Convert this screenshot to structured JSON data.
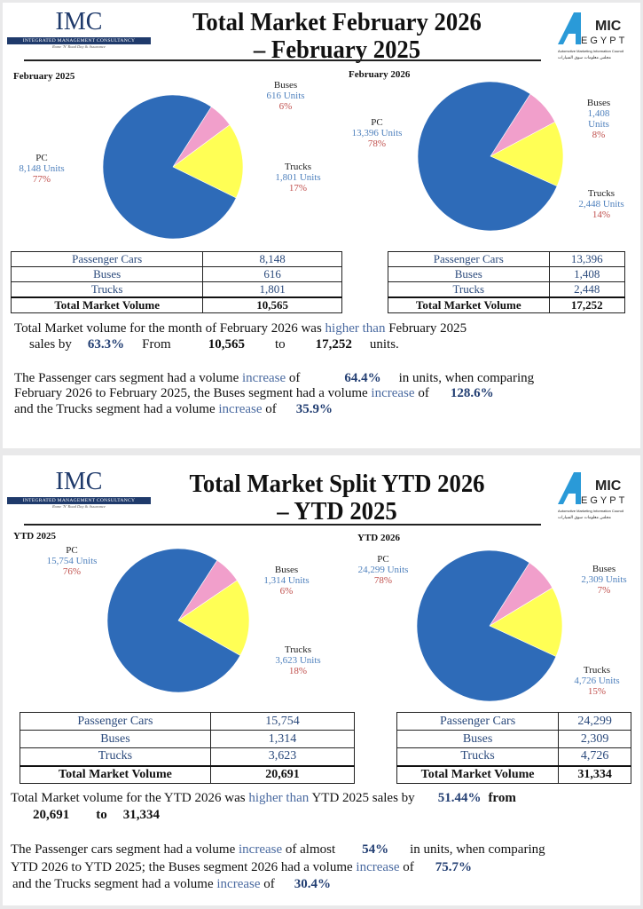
{
  "logos": {
    "imc": {
      "text": "IMC",
      "subtitle": "INTEGRATED MANAGEMENT CONSULTANCY",
      "tagline": "Rome 'N' Road Day & Assurance"
    },
    "amic": {
      "text_a": "A",
      "text_mic": "MIC",
      "text_egypt": "EGYPT",
      "caption": "Automotive Marketing Information Council",
      "caption_ar": "مجلس معلومات سوق السيارات"
    }
  },
  "colors": {
    "pc": "#2e6bb8",
    "buses": "#f19fcb",
    "trucks": "#ffff55",
    "units": "#4f81bd",
    "pct": "#c0504d",
    "accent": "#1f3a6b"
  },
  "panels": [
    {
      "title_line1": "Total Market February 2026",
      "title_line2": "– February 2025",
      "left_label": "February 2025",
      "right_label": "February 2026",
      "left_table": {
        "rows": [
          [
            "Passenger Cars",
            "8,148"
          ],
          [
            "Buses",
            "616"
          ],
          [
            "Trucks",
            "1,801"
          ]
        ],
        "total": [
          "Total Market Volume",
          "10,565"
        ]
      },
      "right_table": {
        "rows": [
          [
            "Passenger Cars",
            "13,396"
          ],
          [
            "Buses",
            "1,408"
          ],
          [
            "Trucks",
            "2,448"
          ]
        ],
        "total": [
          "Total Market Volume",
          "17,252"
        ]
      },
      "p1": {
        "a": "Total Market volume for the month of February 2026 was ",
        "hl": "higher than",
        "b": " February 2025",
        "c": "sales by",
        "pct": "63.3%",
        "from": "From",
        "v1": "10,565",
        "to": "to",
        "v2": "17,252",
        "units": "units."
      },
      "p2": {
        "l1a": "The Passenger cars segment had a volume ",
        "inc": "increase",
        "l1b": " of",
        "v1": "64.4%",
        "l1c": "in units, when comparing",
        "l2a": "February 2026 to February 2025, the Buses segment had a volume ",
        "l2b": " of",
        "v2": "128.6%",
        "l3a": "and the Trucks segment had a volume ",
        "l3b": " of",
        "v3": "35.9%"
      }
    },
    {
      "title_line1": "Total Market Split YTD 2026",
      "title_line2": "– YTD 2025",
      "left_label": "YTD 2025",
      "right_label": "YTD 2026",
      "left_table": {
        "rows": [
          [
            "Passenger Cars",
            "15,754"
          ],
          [
            "Buses",
            "1,314"
          ],
          [
            "Trucks",
            "3,623"
          ]
        ],
        "total": [
          "Total Market Volume",
          "20,691"
        ]
      },
      "right_table": {
        "rows": [
          [
            "Passenger Cars",
            "24,299"
          ],
          [
            "Buses",
            "2,309"
          ],
          [
            "Trucks",
            "4,726"
          ]
        ],
        "total": [
          "Total Market Volume",
          "31,334"
        ]
      },
      "p1": {
        "a": "Total Market volume for the YTD 2026 was ",
        "hl": "higher than",
        "b": " YTD 2025 sales by",
        "pct": "51.44%",
        "from": "from",
        "v1": "20,691",
        "to": "to",
        "v2": "31,334"
      },
      "p2": {
        "l1a": "The Passenger cars segment had a volume ",
        "inc": "increase",
        "l1b": " of almost",
        "v1": "54%",
        "l1c": "in units, when comparing",
        "l2a": "YTD 2026 to YTD 2025; the Buses segment 2026  had a volume ",
        "l2b": " of",
        "v2": "75.7%",
        "l3a": "and the Trucks segment had a volume ",
        "l3b": " of",
        "v3": "30.4%"
      }
    }
  ],
  "chart_data": [
    {
      "type": "pie",
      "title": "February 2025",
      "slices": [
        {
          "label": "PC",
          "value": 8148,
          "units": "8,148 Units",
          "pct": "77%"
        },
        {
          "label": "Buses",
          "value": 616,
          "units": "616  Units",
          "pct": "6%"
        },
        {
          "label": "Trucks",
          "value": 1801,
          "units": "1,801 Units",
          "pct": "17%"
        }
      ]
    },
    {
      "type": "pie",
      "title": "February 2026",
      "slices": [
        {
          "label": "PC",
          "value": 13396,
          "units": "13,396 Units",
          "pct": "78%"
        },
        {
          "label": "Buses",
          "value": 1408,
          "units": "1,408 Units",
          "pct": "8%"
        },
        {
          "label": "Trucks",
          "value": 2448,
          "units": "2,448 Units",
          "pct": "14%"
        }
      ]
    },
    {
      "type": "pie",
      "title": "YTD 2025",
      "slices": [
        {
          "label": "PC",
          "value": 15754,
          "units": "15,754 Units",
          "pct": "76%"
        },
        {
          "label": "Buses",
          "value": 1314,
          "units": "1,314 Units",
          "pct": "6%"
        },
        {
          "label": "Trucks",
          "value": 3623,
          "units": "3,623 Units",
          "pct": "18%"
        }
      ]
    },
    {
      "type": "pie",
      "title": "YTD 2026",
      "slices": [
        {
          "label": "PC",
          "value": 24299,
          "units": "24,299 Units",
          "pct": "78%"
        },
        {
          "label": "Buses",
          "value": 2309,
          "units": "2,309 Units",
          "pct": "7%"
        },
        {
          "label": "Trucks",
          "value": 4726,
          "units": "4,726 Units",
          "pct": "15%"
        }
      ]
    }
  ]
}
